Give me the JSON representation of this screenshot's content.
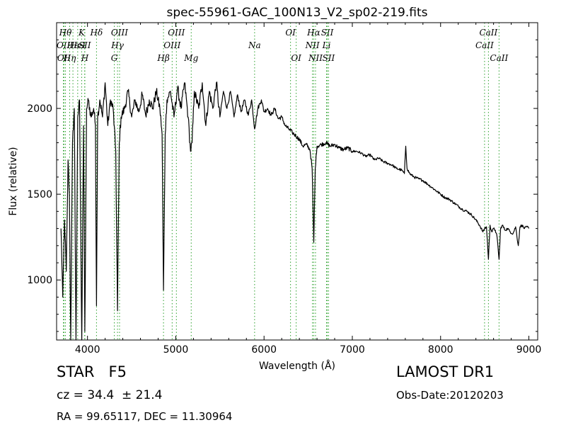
{
  "chart_data": {
    "type": "line",
    "title": "spec-55961-GAC_100N13_V2_sp02-219.fits",
    "xlabel": "Wavelength (Å)",
    "ylabel": "Flux (relative)",
    "xlim": [
      3650,
      9100
    ],
    "ylim": [
      650,
      2500
    ],
    "xticks": [
      4000,
      5000,
      6000,
      7000,
      8000,
      9000
    ],
    "yticks": [
      1000,
      1500,
      2000
    ],
    "grid": false,
    "line_color": "#000000",
    "marker_color": "#2ca02c",
    "spectrum_anchors": [
      [
        3700,
        1300
      ],
      [
        3720,
        900
      ],
      [
        3740,
        1350
      ],
      [
        3760,
        1050
      ],
      [
        3780,
        1700
      ],
      [
        3795,
        1500
      ],
      [
        3810,
        650
      ],
      [
        3830,
        1800
      ],
      [
        3850,
        2000
      ],
      [
        3870,
        650
      ],
      [
        3890,
        1950
      ],
      [
        3910,
        2050
      ],
      [
        3935,
        650
      ],
      [
        3955,
        1900
      ],
      [
        3970,
        700
      ],
      [
        3990,
        2000
      ],
      [
        4010,
        2050
      ],
      [
        4040,
        1950
      ],
      [
        4070,
        2000
      ],
      [
        4090,
        1900
      ],
      [
        4102,
        850
      ],
      [
        4115,
        1950
      ],
      [
        4140,
        2050
      ],
      [
        4170,
        1950
      ],
      [
        4200,
        2150
      ],
      [
        4230,
        1900
      ],
      [
        4260,
        2050
      ],
      [
        4290,
        2000
      ],
      [
        4320,
        1750
      ],
      [
        4340,
        820
      ],
      [
        4360,
        1800
      ],
      [
        4380,
        1950
      ],
      [
        4420,
        2000
      ],
      [
        4460,
        2100
      ],
      [
        4500,
        1950
      ],
      [
        4540,
        2050
      ],
      [
        4580,
        1980
      ],
      [
        4620,
        2080
      ],
      [
        4660,
        1960
      ],
      [
        4700,
        2050
      ],
      [
        4740,
        2000
      ],
      [
        4780,
        2100
      ],
      [
        4820,
        2000
      ],
      [
        4845,
        1850
      ],
      [
        4861,
        940
      ],
      [
        4880,
        1850
      ],
      [
        4900,
        2050
      ],
      [
        4940,
        2100
      ],
      [
        4980,
        1950
      ],
      [
        5020,
        2120
      ],
      [
        5060,
        2000
      ],
      [
        5100,
        2150
      ],
      [
        5140,
        1950
      ],
      [
        5167,
        1750
      ],
      [
        5185,
        1800
      ],
      [
        5210,
        2100
      ],
      [
        5260,
        2000
      ],
      [
        5300,
        2150
      ],
      [
        5340,
        1900
      ],
      [
        5380,
        2100
      ],
      [
        5420,
        2000
      ],
      [
        5460,
        2150
      ],
      [
        5500,
        1950
      ],
      [
        5540,
        2100
      ],
      [
        5580,
        2000
      ],
      [
        5620,
        2100
      ],
      [
        5660,
        1950
      ],
      [
        5700,
        2080
      ],
      [
        5740,
        1980
      ],
      [
        5780,
        2050
      ],
      [
        5820,
        1960
      ],
      [
        5860,
        2050
      ],
      [
        5893,
        1880
      ],
      [
        5930,
        2000
      ],
      [
        5970,
        2050
      ],
      [
        6000,
        1980
      ],
      [
        6040,
        2000
      ],
      [
        6080,
        1960
      ],
      [
        6120,
        2000
      ],
      [
        6160,
        1940
      ],
      [
        6200,
        1950
      ],
      [
        6240,
        1900
      ],
      [
        6280,
        1880
      ],
      [
        6320,
        1860
      ],
      [
        6360,
        1840
      ],
      [
        6400,
        1820
      ],
      [
        6440,
        1780
      ],
      [
        6480,
        1790
      ],
      [
        6520,
        1760
      ],
      [
        6545,
        1650
      ],
      [
        6563,
        1220
      ],
      [
        6580,
        1650
      ],
      [
        6600,
        1780
      ],
      [
        6650,
        1790
      ],
      [
        6700,
        1800
      ],
      [
        6750,
        1780
      ],
      [
        6800,
        1790
      ],
      [
        6850,
        1770
      ],
      [
        6900,
        1760
      ],
      [
        6950,
        1770
      ],
      [
        7000,
        1750
      ],
      [
        7050,
        1750
      ],
      [
        7100,
        1740
      ],
      [
        7150,
        1720
      ],
      [
        7200,
        1730
      ],
      [
        7250,
        1700
      ],
      [
        7300,
        1710
      ],
      [
        7350,
        1690
      ],
      [
        7400,
        1680
      ],
      [
        7450,
        1670
      ],
      [
        7500,
        1650
      ],
      [
        7560,
        1640
      ],
      [
        7590,
        1620
      ],
      [
        7605,
        1780
      ],
      [
        7620,
        1650
      ],
      [
        7650,
        1620
      ],
      [
        7700,
        1600
      ],
      [
        7750,
        1590
      ],
      [
        7800,
        1580
      ],
      [
        7850,
        1560
      ],
      [
        7900,
        1540
      ],
      [
        7950,
        1520
      ],
      [
        8000,
        1500
      ],
      [
        8050,
        1480
      ],
      [
        8100,
        1470
      ],
      [
        8150,
        1450
      ],
      [
        8200,
        1430
      ],
      [
        8250,
        1410
      ],
      [
        8300,
        1400
      ],
      [
        8350,
        1380
      ],
      [
        8400,
        1350
      ],
      [
        8440,
        1320
      ],
      [
        8480,
        1280
      ],
      [
        8498,
        1300
      ],
      [
        8520,
        1310
      ],
      [
        8542,
        1120
      ],
      [
        8560,
        1320
      ],
      [
        8580,
        1280
      ],
      [
        8600,
        1300
      ],
      [
        8620,
        1290
      ],
      [
        8640,
        1250
      ],
      [
        8662,
        1120
      ],
      [
        8680,
        1300
      ],
      [
        8700,
        1320
      ],
      [
        8730,
        1290
      ],
      [
        8760,
        1300
      ],
      [
        8790,
        1280
      ],
      [
        8820,
        1270
      ],
      [
        8850,
        1310
      ],
      [
        8880,
        1200
      ],
      [
        8900,
        1310
      ],
      [
        8920,
        1320
      ],
      [
        8950,
        1300
      ],
      [
        8980,
        1310
      ],
      [
        9000,
        1300
      ]
    ],
    "line_markers": [
      {
        "wavelength": 3727,
        "label": "OII",
        "row": 2
      },
      {
        "wavelength": 3734,
        "label": "OII",
        "row": 3
      },
      {
        "wavelength": 3750,
        "label": "Hθ",
        "row": 1
      },
      {
        "wavelength": 3798,
        "label": "Hη",
        "row": 3
      },
      {
        "wavelength": 3835,
        "label": "Hε",
        "row": 2
      },
      {
        "wavelength": 3889,
        "label": "HeI",
        "row": 2
      },
      {
        "wavelength": 3934,
        "label": "K",
        "row": 1
      },
      {
        "wavelength": 3968,
        "label": "SII",
        "row": 2
      },
      {
        "wavelength": 3970,
        "label": "H",
        "row": 3
      },
      {
        "wavelength": 4102,
        "label": "Hδ",
        "row": 1
      },
      {
        "wavelength": 4304,
        "label": "G",
        "row": 3
      },
      {
        "wavelength": 4340,
        "label": "Hγ",
        "row": 2
      },
      {
        "wavelength": 4363,
        "label": "OIII",
        "row": 1
      },
      {
        "wavelength": 4861,
        "label": "Hβ",
        "row": 3
      },
      {
        "wavelength": 4959,
        "label": "OIII",
        "row": 2
      },
      {
        "wavelength": 5007,
        "label": "OIII",
        "row": 1
      },
      {
        "wavelength": 5175,
        "label": "Mg",
        "row": 3
      },
      {
        "wavelength": 5893,
        "label": "Na",
        "row": 2
      },
      {
        "wavelength": 6300,
        "label": "OI",
        "row": 1
      },
      {
        "wavelength": 6364,
        "label": "OI",
        "row": 3
      },
      {
        "wavelength": 6548,
        "label": "NII",
        "row": 2
      },
      {
        "wavelength": 6563,
        "label": "Hα",
        "row": 1
      },
      {
        "wavelength": 6583,
        "label": "NII",
        "row": 3
      },
      {
        "wavelength": 6708,
        "label": "Li",
        "row": 2
      },
      {
        "wavelength": 6716,
        "label": "SII",
        "row": 1
      },
      {
        "wavelength": 6731,
        "label": "SII",
        "row": 3
      },
      {
        "wavelength": 8498,
        "label": "CaII",
        "row": 2
      },
      {
        "wavelength": 8542,
        "label": "CaII",
        "row": 1
      },
      {
        "wavelength": 8662,
        "label": "CaII",
        "row": 3
      }
    ]
  },
  "info": {
    "object_type": "STAR   F5",
    "survey": "LAMOST DR1",
    "redshift": "cz = 34.4  ± 21.4",
    "obs_date": "Obs-Date:20120203",
    "coordinates": "RA = 99.65117, DEC = 11.30964"
  }
}
